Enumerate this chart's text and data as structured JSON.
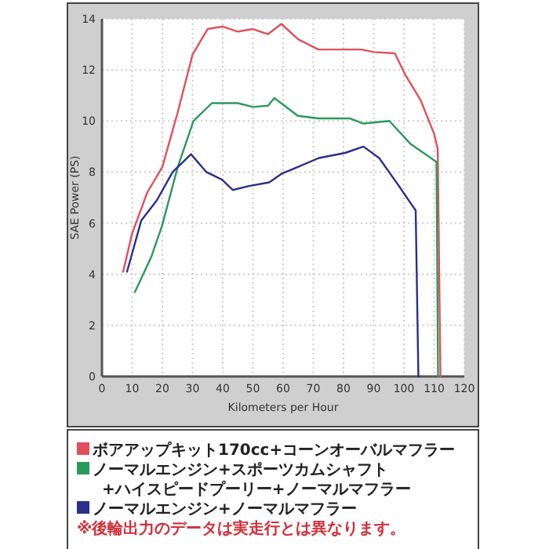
{
  "chart_data": {
    "type": "line",
    "xlabel": "Kilometers per Hour",
    "ylabel": "SAE Power (PS)",
    "xlim": [
      0,
      120
    ],
    "xticks": [
      0,
      10,
      20,
      30,
      40,
      50,
      60,
      70,
      80,
      90,
      100,
      110,
      120
    ],
    "ylim": [
      0,
      14
    ],
    "yticks": [
      0,
      2,
      4,
      6,
      8,
      10,
      12,
      14
    ],
    "grid": true,
    "legend": "bottom",
    "line_style": "solid",
    "marker": "none",
    "series": [
      {
        "name": "ボアアップキット170cc+コーンオーバルマフラー",
        "color": "#e0505a",
        "x": [
          7,
          10,
          15,
          20,
          25,
          30,
          35,
          40,
          45,
          50,
          55,
          59.4,
          65,
          71.7,
          80,
          86,
          90,
          97,
          100.5,
          105.6,
          110,
          111.2,
          112.1
        ],
        "values": [
          4.1,
          5.6,
          7.2,
          8.2,
          10.3,
          12.6,
          13.6,
          13.7,
          13.5,
          13.6,
          13.4,
          13.8,
          13.2,
          12.8,
          12.8,
          12.8,
          12.7,
          12.65,
          11.8,
          10.8,
          9.5,
          8.9,
          0
        ]
      },
      {
        "name": "ノーマルエンジン+スポーツカムシャフト+ハイスピードプーリー+ノーマルマフラー",
        "color": "#2a9a5a",
        "x": [
          10.9,
          16.4,
          19.9,
          25.1,
          30.3,
          36.4,
          45,
          50,
          55,
          57.1,
          64.9,
          71.8,
          82.2,
          86.6,
          95.2,
          102.2,
          110.8,
          111.3
        ],
        "values": [
          3.3,
          4.7,
          5.9,
          8.2,
          10.0,
          10.7,
          10.7,
          10.55,
          10.6,
          10.9,
          10.2,
          10.1,
          10.1,
          9.9,
          10.0,
          9.1,
          8.4,
          0
        ]
      },
      {
        "name": "ノーマルエンジン+ノーマルマフラー",
        "color": "#2b2f8a",
        "x": [
          8.3,
          13,
          18.2,
          23.4,
          29.5,
          34.6,
          39.8,
          43.3,
          48.5,
          55.4,
          59.7,
          64.9,
          71.8,
          80.5,
          86.6,
          91.8,
          97.8,
          103,
          103.9,
          104.8
        ],
        "values": [
          4.1,
          6.1,
          6.9,
          8.0,
          8.7,
          8.0,
          7.7,
          7.3,
          7.45,
          7.6,
          7.95,
          8.2,
          8.55,
          8.75,
          9.0,
          8.55,
          7.55,
          6.65,
          6.5,
          0
        ]
      }
    ],
    "annotations": [
      "※後輪出力のデータは実走行とは異なります。"
    ]
  }
}
